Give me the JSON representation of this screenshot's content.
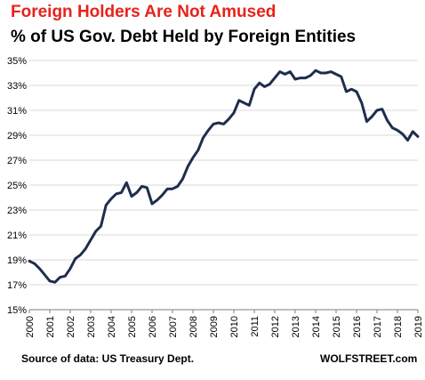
{
  "title": "Foreign Holders Are Not Amused",
  "subtitle": "% of US Gov. Debt Held by Foreign Entities",
  "footer_source": "Source of data: US Treasury Dept.",
  "footer_brand": "WOLFSTREET.com",
  "colors": {
    "title": "#e8221b",
    "line": "#1f2d4e",
    "grid": "#d9d9d9",
    "axis": "#000000"
  },
  "chart_data": {
    "type": "line",
    "title": "% of US Gov. Debt Held by Foreign Entities",
    "xlabel": "",
    "ylabel": "",
    "xlim": [
      2000,
      2019
    ],
    "ylim": [
      15,
      35
    ],
    "grid": true,
    "legend": "none",
    "yticks": [
      15,
      17,
      19,
      21,
      23,
      25,
      27,
      29,
      31,
      33,
      35
    ],
    "ytick_labels": [
      "15%",
      "17%",
      "19%",
      "21%",
      "23%",
      "25%",
      "27%",
      "29%",
      "31%",
      "33%",
      "35%"
    ],
    "xtick_labels": [
      "2000",
      "2001",
      "2002",
      "2003",
      "2004",
      "2005",
      "2006",
      "2007",
      "2008",
      "2009",
      "2010",
      "2011",
      "2012",
      "2013",
      "2014",
      "2015",
      "2016",
      "2017",
      "2018",
      "2019"
    ],
    "series": [
      {
        "x": [
          2000.0,
          2000.25,
          2000.5,
          2000.75,
          2001.0,
          2001.25,
          2001.5,
          2001.75,
          2002.0,
          2002.25,
          2002.5,
          2002.75,
          2003.0,
          2003.25,
          2003.5,
          2003.75,
          2004.0,
          2004.25,
          2004.5,
          2004.75,
          2005.0,
          2005.25,
          2005.5,
          2005.75,
          2006.0,
          2006.25,
          2006.5,
          2006.75,
          2007.0,
          2007.25,
          2007.5,
          2007.75,
          2008.0,
          2008.25,
          2008.5,
          2008.75,
          2009.0,
          2009.25,
          2009.5,
          2009.75,
          2010.0,
          2010.25,
          2010.5,
          2010.75,
          2011.0,
          2011.25,
          2011.5,
          2011.75,
          2012.0,
          2012.25,
          2012.5,
          2012.75,
          2013.0,
          2013.25,
          2013.5,
          2013.75,
          2014.0,
          2014.25,
          2014.5,
          2014.75,
          2015.0,
          2015.25,
          2015.5,
          2015.75,
          2016.0,
          2016.25,
          2016.5,
          2016.75,
          2017.0,
          2017.25,
          2017.5,
          2017.75,
          2018.0,
          2018.25,
          2018.5,
          2018.75,
          2019.0
        ],
        "values": [
          18.9,
          18.7,
          18.3,
          17.8,
          17.3,
          17.2,
          17.6,
          17.7,
          18.3,
          19.1,
          19.4,
          19.9,
          20.6,
          21.3,
          21.7,
          23.4,
          23.9,
          24.3,
          24.4,
          25.2,
          24.1,
          24.4,
          24.9,
          24.8,
          23.5,
          23.8,
          24.2,
          24.7,
          24.7,
          24.9,
          25.5,
          26.5,
          27.2,
          27.8,
          28.8,
          29.4,
          29.9,
          30.0,
          29.9,
          30.3,
          30.8,
          31.8,
          31.6,
          31.4,
          32.7,
          33.2,
          32.9,
          33.1,
          33.6,
          34.1,
          33.9,
          34.1,
          33.5,
          33.6,
          33.6,
          33.8,
          34.2,
          34.0,
          34.0,
          34.1,
          33.9,
          33.7,
          32.5,
          32.7,
          32.5,
          31.6,
          30.1,
          30.5,
          31.0,
          31.1,
          30.2,
          29.6,
          29.4,
          29.1,
          28.6,
          29.3,
          28.9
        ]
      }
    ]
  }
}
